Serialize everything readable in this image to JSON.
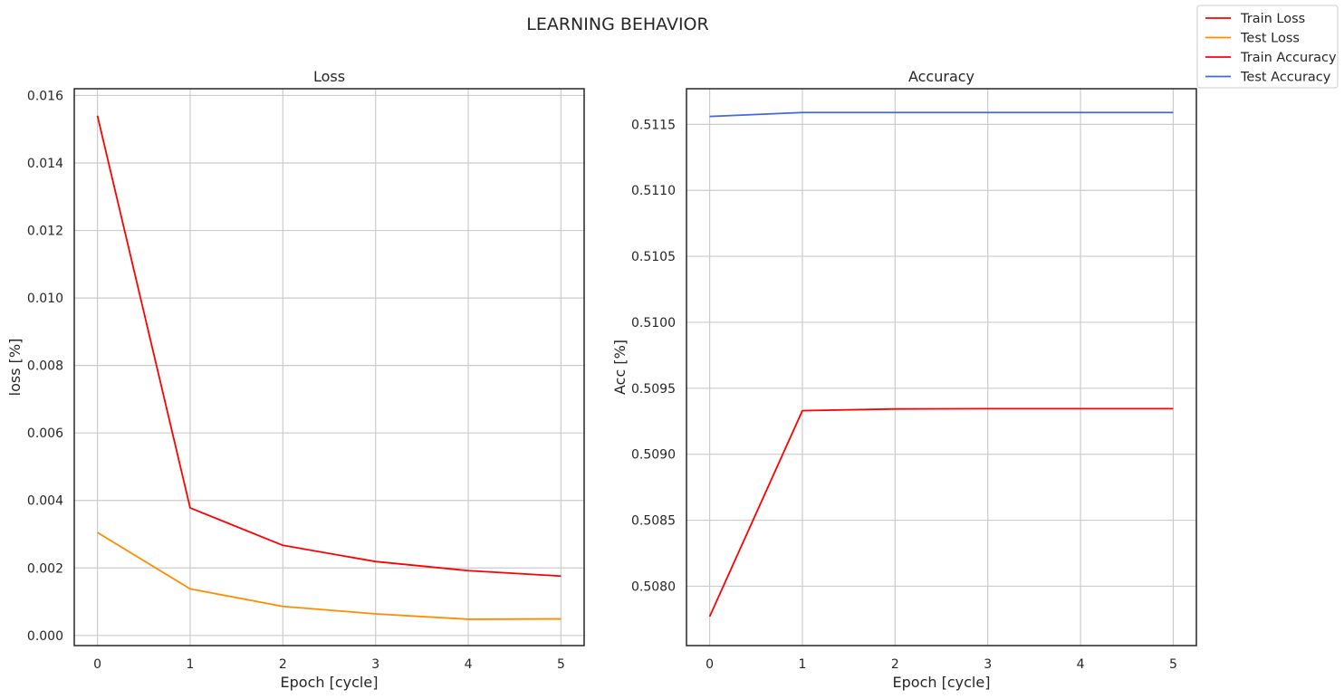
{
  "figure": {
    "title": "LEARNING BEHAVIOR"
  },
  "legend": {
    "placement": "top-right",
    "entries": [
      {
        "label": "Train Loss",
        "color": "#ff0000"
      },
      {
        "label": "Test Loss",
        "color": "#ff8c00"
      },
      {
        "label": "Train Accuracy",
        "color": "#ff0000"
      },
      {
        "label": "Test Accuracy",
        "color": "#4169e1"
      }
    ]
  },
  "chart_data": [
    {
      "type": "line",
      "title": "Loss",
      "xlabel": "Epoch [cycle]",
      "ylabel": "loss [%]",
      "xlim": [
        -0.25,
        5.25
      ],
      "ylim": [
        -0.0003,
        0.0162
      ],
      "x_ticks": [
        0,
        1,
        2,
        3,
        4,
        5
      ],
      "y_ticks": [
        0.0,
        0.002,
        0.004,
        0.006,
        0.008,
        0.01,
        0.012,
        0.014,
        0.016
      ],
      "y_tick_labels": [
        "0.000",
        "0.002",
        "0.004",
        "0.006",
        "0.008",
        "0.010",
        "0.012",
        "0.014",
        "0.016"
      ],
      "grid": true,
      "x": [
        0,
        1,
        2,
        3,
        4,
        5
      ],
      "series": [
        {
          "name": "Train Loss",
          "color": "#ff0000",
          "values": [
            0.0154,
            0.00378,
            0.00267,
            0.00219,
            0.00192,
            0.00176
          ]
        },
        {
          "name": "Test Loss",
          "color": "#ff8c00",
          "values": [
            0.00305,
            0.00138,
            0.00086,
            0.00064,
            0.00048,
            0.00049
          ]
        }
      ]
    },
    {
      "type": "line",
      "title": "Accuracy",
      "xlabel": "Epoch [cycle]",
      "ylabel": "Acc [%]",
      "xlim": [
        -0.25,
        5.25
      ],
      "ylim": [
        0.50755,
        0.51177
      ],
      "x_ticks": [
        0,
        1,
        2,
        3,
        4,
        5
      ],
      "y_ticks": [
        0.508,
        0.5085,
        0.509,
        0.5095,
        0.51,
        0.5105,
        0.511,
        0.5115
      ],
      "y_tick_labels": [
        "0.5080",
        "0.5085",
        "0.5090",
        "0.5095",
        "0.5100",
        "0.5105",
        "0.5110",
        "0.5115"
      ],
      "grid": true,
      "x": [
        0,
        1,
        2,
        3,
        4,
        5
      ],
      "series": [
        {
          "name": "Train Accuracy",
          "color": "#ff0000",
          "values": [
            0.50777,
            0.50933,
            0.509343,
            0.509345,
            0.509345,
            0.509345
          ]
        },
        {
          "name": "Test Accuracy",
          "color": "#4169e1",
          "values": [
            0.51156,
            0.51159,
            0.51159,
            0.51159,
            0.51159,
            0.51159
          ]
        }
      ]
    }
  ]
}
